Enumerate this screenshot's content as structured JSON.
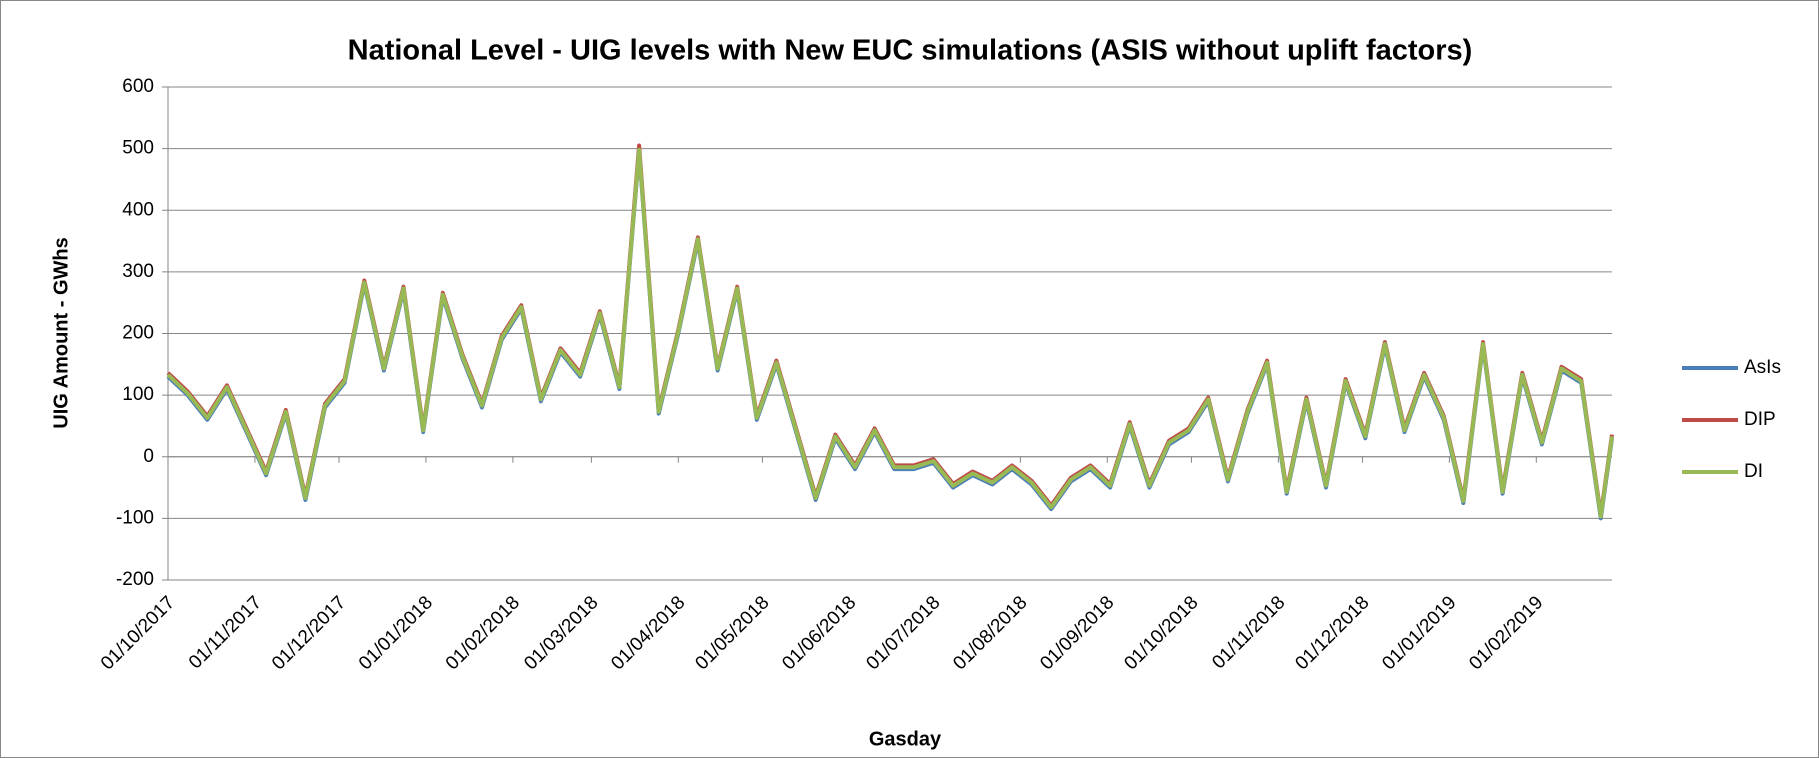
{
  "chart_data": {
    "type": "line",
    "title": "National Level - UIG levels with New EUC simulations  (ASIS without uplift factors)",
    "x_label": "Gasday",
    "y_label": "UIG Amount - GWhs",
    "x": [
      "01/10/2017",
      "08/10/2017",
      "15/10/2017",
      "22/10/2017",
      "29/10/2017",
      "05/11/2017",
      "12/11/2017",
      "19/11/2017",
      "26/11/2017",
      "03/12/2017",
      "10/12/2017",
      "17/12/2017",
      "24/12/2017",
      "31/12/2017",
      "07/01/2018",
      "14/01/2018",
      "21/01/2018",
      "28/01/2018",
      "04/02/2018",
      "11/02/2018",
      "18/02/2018",
      "25/02/2018",
      "04/03/2018",
      "11/03/2018",
      "18/03/2018",
      "25/03/2018",
      "01/04/2018",
      "08/04/2018",
      "15/04/2018",
      "22/04/2018",
      "29/04/2018",
      "06/05/2018",
      "13/05/2018",
      "20/05/2018",
      "27/05/2018",
      "03/06/2018",
      "10/06/2018",
      "17/06/2018",
      "24/06/2018",
      "01/07/2018",
      "08/07/2018",
      "15/07/2018",
      "22/07/2018",
      "29/07/2018",
      "05/08/2018",
      "12/08/2018",
      "19/08/2018",
      "26/08/2018",
      "02/09/2018",
      "09/09/2018",
      "16/09/2018",
      "23/09/2018",
      "30/09/2018",
      "07/10/2018",
      "14/10/2018",
      "21/10/2018",
      "28/10/2018",
      "04/11/2018",
      "11/11/2018",
      "18/11/2018",
      "25/11/2018",
      "02/12/2018",
      "09/12/2018",
      "16/12/2018",
      "23/12/2018",
      "30/12/2018",
      "06/01/2019",
      "13/01/2019",
      "20/01/2019",
      "27/01/2019",
      "03/02/2019",
      "10/02/2019",
      "17/02/2019",
      "24/02/2019",
      "28/02/2019"
    ],
    "series": [
      {
        "name": "AsIs",
        "color": "#4a7ebb",
        "values": [
          130,
          100,
          60,
          110,
          40,
          -30,
          70,
          -70,
          80,
          120,
          280,
          140,
          270,
          40,
          260,
          160,
          80,
          190,
          240,
          90,
          170,
          130,
          230,
          110,
          495,
          70,
          200,
          350,
          140,
          270,
          60,
          150,
          40,
          -70,
          30,
          -20,
          40,
          -20,
          -20,
          -10,
          -50,
          -30,
          -45,
          -20,
          -45,
          -85,
          -40,
          -20,
          -50,
          50,
          -50,
          20,
          40,
          90,
          -40,
          70,
          150,
          -60,
          90,
          -50,
          120,
          30,
          180,
          40,
          130,
          60,
          -75,
          180,
          -60,
          130,
          20,
          140,
          120,
          -100,
          30
        ]
      },
      {
        "name": "DIP",
        "color": "#be4b48",
        "values": [
          136,
          106,
          66,
          116,
          46,
          -24,
          76,
          -64,
          86,
          126,
          286,
          146,
          276,
          46,
          266,
          166,
          86,
          196,
          246,
          96,
          176,
          136,
          236,
          116,
          505,
          76,
          206,
          356,
          146,
          276,
          66,
          156,
          46,
          -64,
          36,
          -14,
          46,
          -14,
          -14,
          -4,
          -44,
          -24,
          -39,
          -14,
          -39,
          -79,
          -34,
          -14,
          -44,
          56,
          -44,
          26,
          46,
          96,
          -34,
          76,
          156,
          -54,
          96,
          -44,
          126,
          36,
          186,
          46,
          136,
          66,
          -69,
          186,
          -54,
          136,
          26,
          146,
          126,
          -94,
          36
        ]
      },
      {
        "name": "DI",
        "color": "#98b954",
        "values": [
          133,
          103,
          63,
          113,
          43,
          -27,
          73,
          -67,
          83,
          123,
          283,
          143,
          273,
          43,
          263,
          163,
          83,
          193,
          243,
          93,
          173,
          133,
          233,
          113,
          498,
          73,
          203,
          353,
          143,
          273,
          63,
          153,
          43,
          -67,
          33,
          -17,
          43,
          -17,
          -17,
          -7,
          -47,
          -27,
          -42,
          -17,
          -42,
          -82,
          -37,
          -17,
          -47,
          53,
          -47,
          23,
          43,
          93,
          -37,
          73,
          153,
          -57,
          93,
          -47,
          123,
          33,
          183,
          43,
          133,
          63,
          -72,
          183,
          -57,
          133,
          23,
          143,
          123,
          -97,
          33
        ]
      }
    ],
    "xlim": [
      "01/10/2017",
      "28/02/2019"
    ],
    "xticks": [
      "01/10/2017",
      "01/11/2017",
      "01/12/2017",
      "01/01/2018",
      "01/02/2018",
      "01/03/2018",
      "01/04/2018",
      "01/05/2018",
      "01/06/2018",
      "01/07/2018",
      "01/08/2018",
      "01/09/2018",
      "01/10/2018",
      "01/11/2018",
      "01/12/2018",
      "01/01/2019",
      "01/02/2019"
    ],
    "ylim": [
      -200,
      600
    ],
    "yticks": [
      -200,
      -100,
      0,
      100,
      200,
      300,
      400,
      500,
      600
    ],
    "grid": true,
    "legend": "right"
  }
}
